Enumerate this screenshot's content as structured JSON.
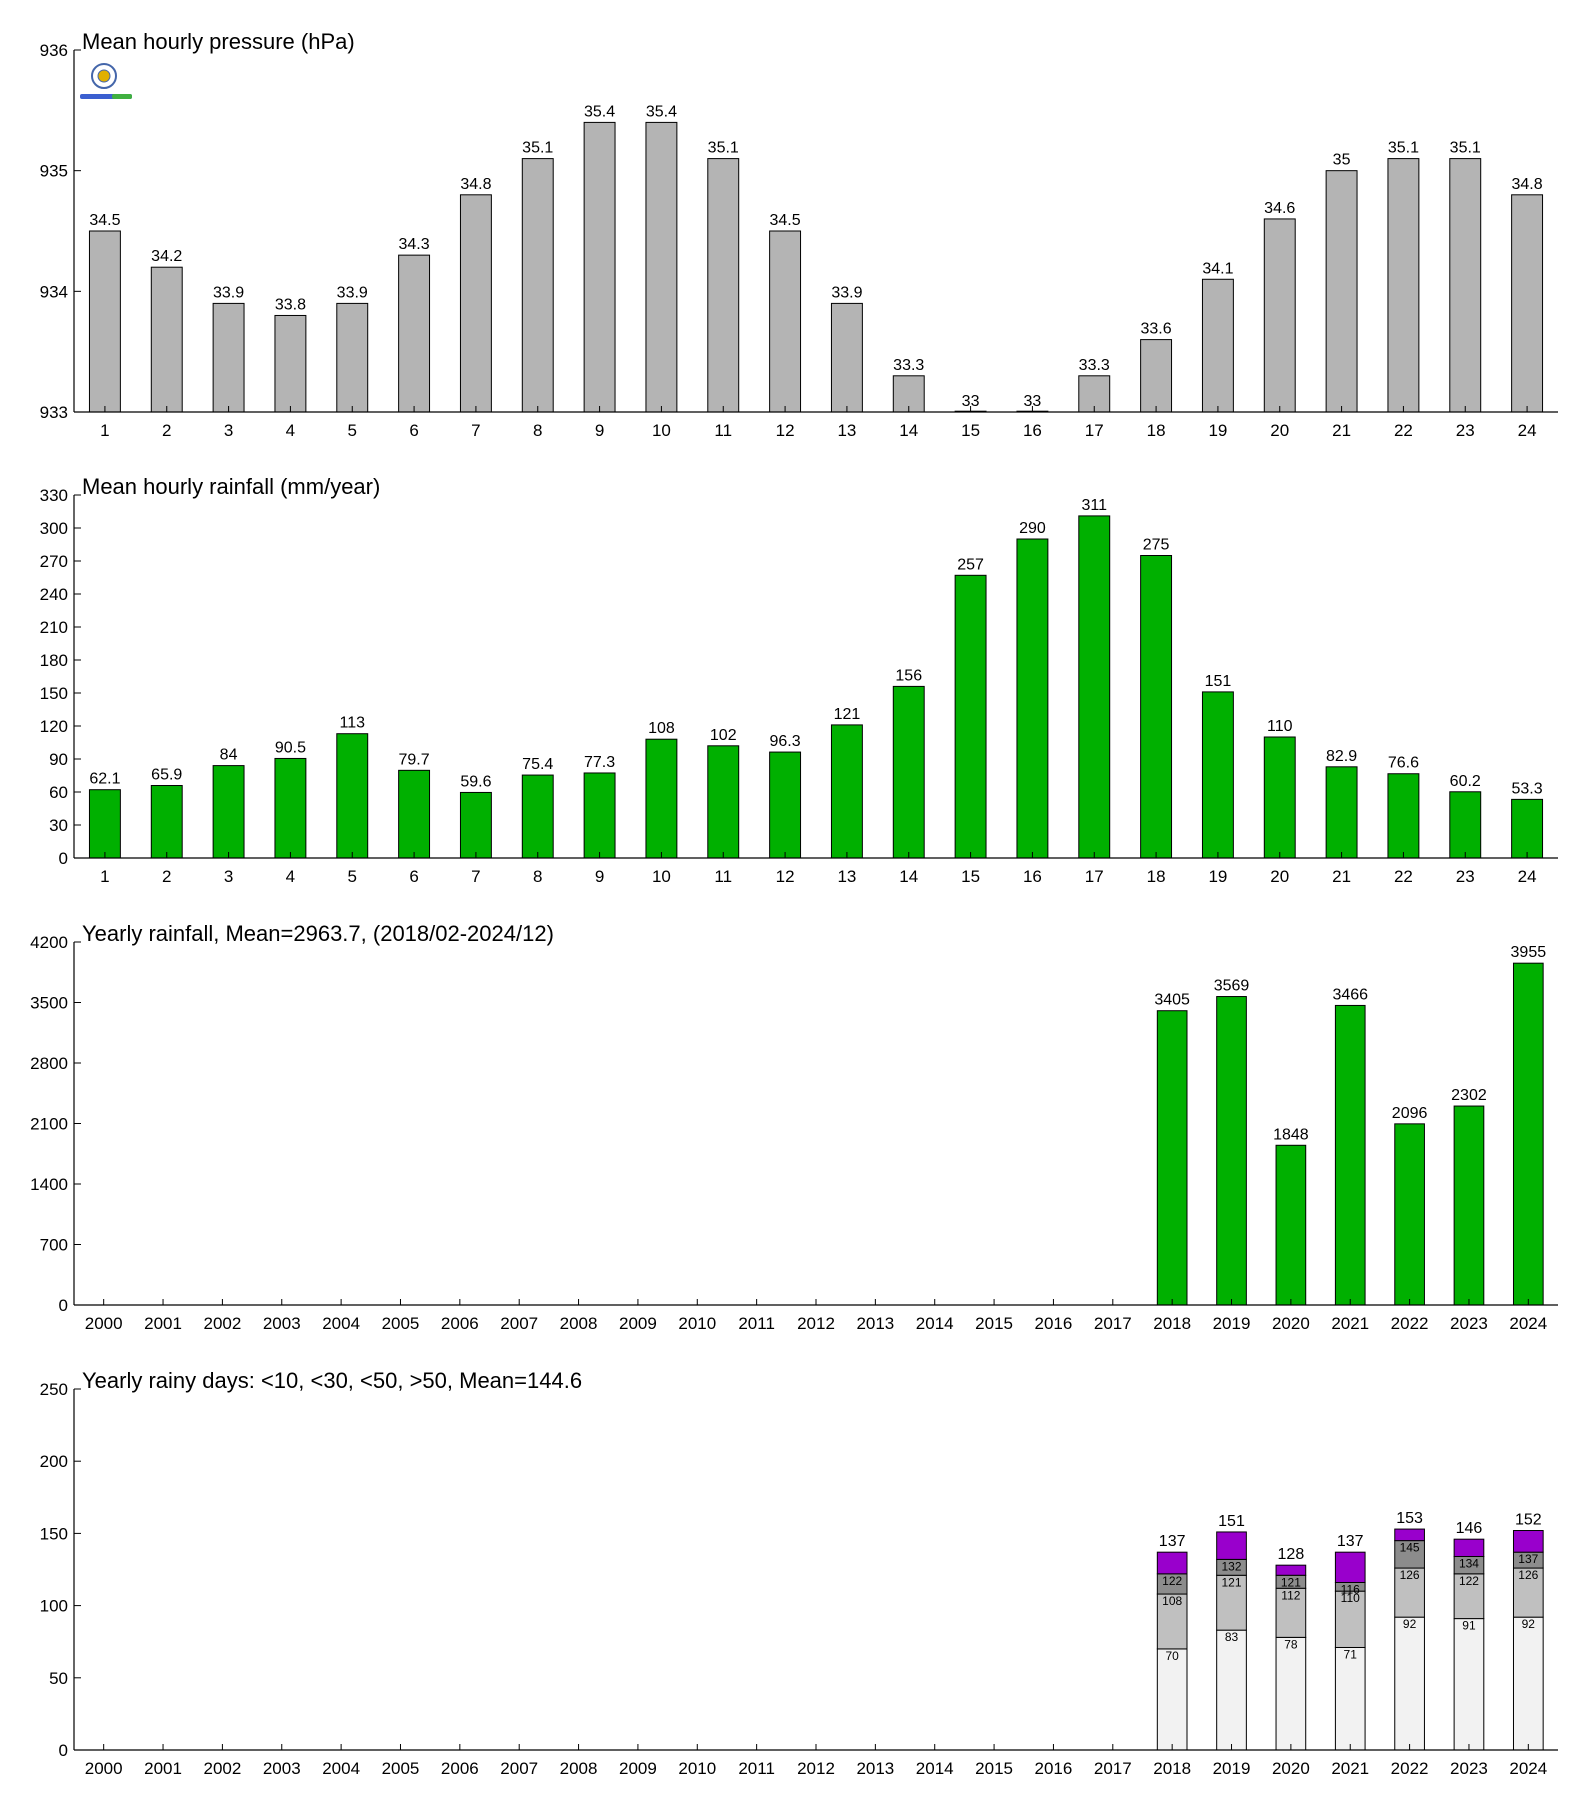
{
  "chart_data": [
    {
      "type": "bar",
      "title": "Mean hourly pressure (hPa)",
      "categories": [
        "1",
        "2",
        "3",
        "4",
        "5",
        "6",
        "7",
        "8",
        "9",
        "10",
        "11",
        "12",
        "13",
        "14",
        "15",
        "16",
        "17",
        "18",
        "19",
        "20",
        "21",
        "22",
        "23",
        "24"
      ],
      "values": [
        934.5,
        934.2,
        933.9,
        933.8,
        933.9,
        934.3,
        934.8,
        935.1,
        935.4,
        935.4,
        935.1,
        934.5,
        933.9,
        933.3,
        933.0,
        933.0,
        933.3,
        933.6,
        934.1,
        934.6,
        935.0,
        935.1,
        935.1,
        934.8
      ],
      "data_labels": [
        "34.5",
        "34.2",
        "33.9",
        "33.8",
        "33.9",
        "34.3",
        "34.8",
        "35.1",
        "35.4",
        "35.4",
        "35.1",
        "34.5",
        "33.9",
        "33.3",
        "33",
        "33",
        "33.3",
        "33.6",
        "34.1",
        "34.6",
        "35",
        "35.1",
        "35.1",
        "34.8"
      ],
      "ylim": [
        933,
        936
      ],
      "yticks": [
        "933",
        "934",
        "935",
        "936"
      ],
      "color": "#b4b4b4"
    },
    {
      "type": "bar",
      "title": "Mean hourly rainfall (mm/year)",
      "categories": [
        "1",
        "2",
        "3",
        "4",
        "5",
        "6",
        "7",
        "8",
        "9",
        "10",
        "11",
        "12",
        "13",
        "14",
        "15",
        "16",
        "17",
        "18",
        "19",
        "20",
        "21",
        "22",
        "23",
        "24"
      ],
      "values": [
        62.1,
        65.9,
        84,
        90.5,
        113,
        79.7,
        59.6,
        75.4,
        77.3,
        108,
        102,
        96.3,
        121,
        156,
        257,
        290,
        311,
        275,
        151,
        110,
        82.9,
        76.6,
        60.2,
        53.3
      ],
      "data_labels": [
        "62.1",
        "65.9",
        "84",
        "90.5",
        "113",
        "79.7",
        "59.6",
        "75.4",
        "77.3",
        "108",
        "102",
        "96.3",
        "121",
        "156",
        "257",
        "290",
        "311",
        "275",
        "151",
        "110",
        "82.9",
        "76.6",
        "60.2",
        "53.3"
      ],
      "ylim": [
        0,
        330
      ],
      "yticks": [
        "0",
        "30",
        "60",
        "90",
        "120",
        "150",
        "180",
        "210",
        "240",
        "270",
        "300",
        "330"
      ],
      "color": "#00b000"
    },
    {
      "type": "bar",
      "title": "Yearly rainfall, Mean=2963.7, (2018/02-2024/12)",
      "categories": [
        "2000",
        "2001",
        "2002",
        "2003",
        "2004",
        "2005",
        "2006",
        "2007",
        "2008",
        "2009",
        "2010",
        "2011",
        "2012",
        "2013",
        "2014",
        "2015",
        "2016",
        "2017",
        "2018",
        "2019",
        "2020",
        "2021",
        "2022",
        "2023",
        "2024"
      ],
      "values": [
        null,
        null,
        null,
        null,
        null,
        null,
        null,
        null,
        null,
        null,
        null,
        null,
        null,
        null,
        null,
        null,
        null,
        null,
        3405,
        3569,
        1848,
        3466,
        2096,
        2302,
        3955
      ],
      "data_labels": [
        "",
        "",
        "",
        "",
        "",
        "",
        "",
        "",
        "",
        "",
        "",
        "",
        "",
        "",
        "",
        "",
        "",
        "",
        "3405",
        "3569",
        "1848",
        "3466",
        "2096",
        "2302",
        "3955"
      ],
      "ylim": [
        0,
        4200
      ],
      "yticks": [
        "0",
        "700",
        "1400",
        "2100",
        "2800",
        "3500",
        "4200"
      ],
      "color": "#00b000"
    },
    {
      "type": "bar",
      "stacked": true,
      "title": "Yearly rainy days: <10, <30, <50, >50, Mean=144.6",
      "categories": [
        "2000",
        "2001",
        "2002",
        "2003",
        "2004",
        "2005",
        "2006",
        "2007",
        "2008",
        "2009",
        "2010",
        "2011",
        "2012",
        "2013",
        "2014",
        "2015",
        "2016",
        "2017",
        "2018",
        "2019",
        "2020",
        "2021",
        "2022",
        "2023",
        "2024"
      ],
      "cumulative": [
        null,
        null,
        null,
        null,
        null,
        null,
        null,
        null,
        null,
        null,
        null,
        null,
        null,
        null,
        null,
        null,
        null,
        null,
        [
          70,
          108,
          122,
          137
        ],
        [
          83,
          121,
          132,
          151
        ],
        [
          78,
          112,
          121,
          128
        ],
        [
          71,
          110,
          116,
          137
        ],
        [
          92,
          126,
          145,
          153
        ],
        [
          91,
          122,
          134,
          146
        ],
        [
          92,
          126,
          137,
          152
        ]
      ],
      "colors": [
        "#f2f2f2",
        "#c0c0c0",
        "#8c8c8c",
        "#9900cc"
      ],
      "ylim": [
        0,
        250
      ],
      "yticks": [
        "0",
        "50",
        "100",
        "150",
        "200",
        "250"
      ]
    }
  ]
}
